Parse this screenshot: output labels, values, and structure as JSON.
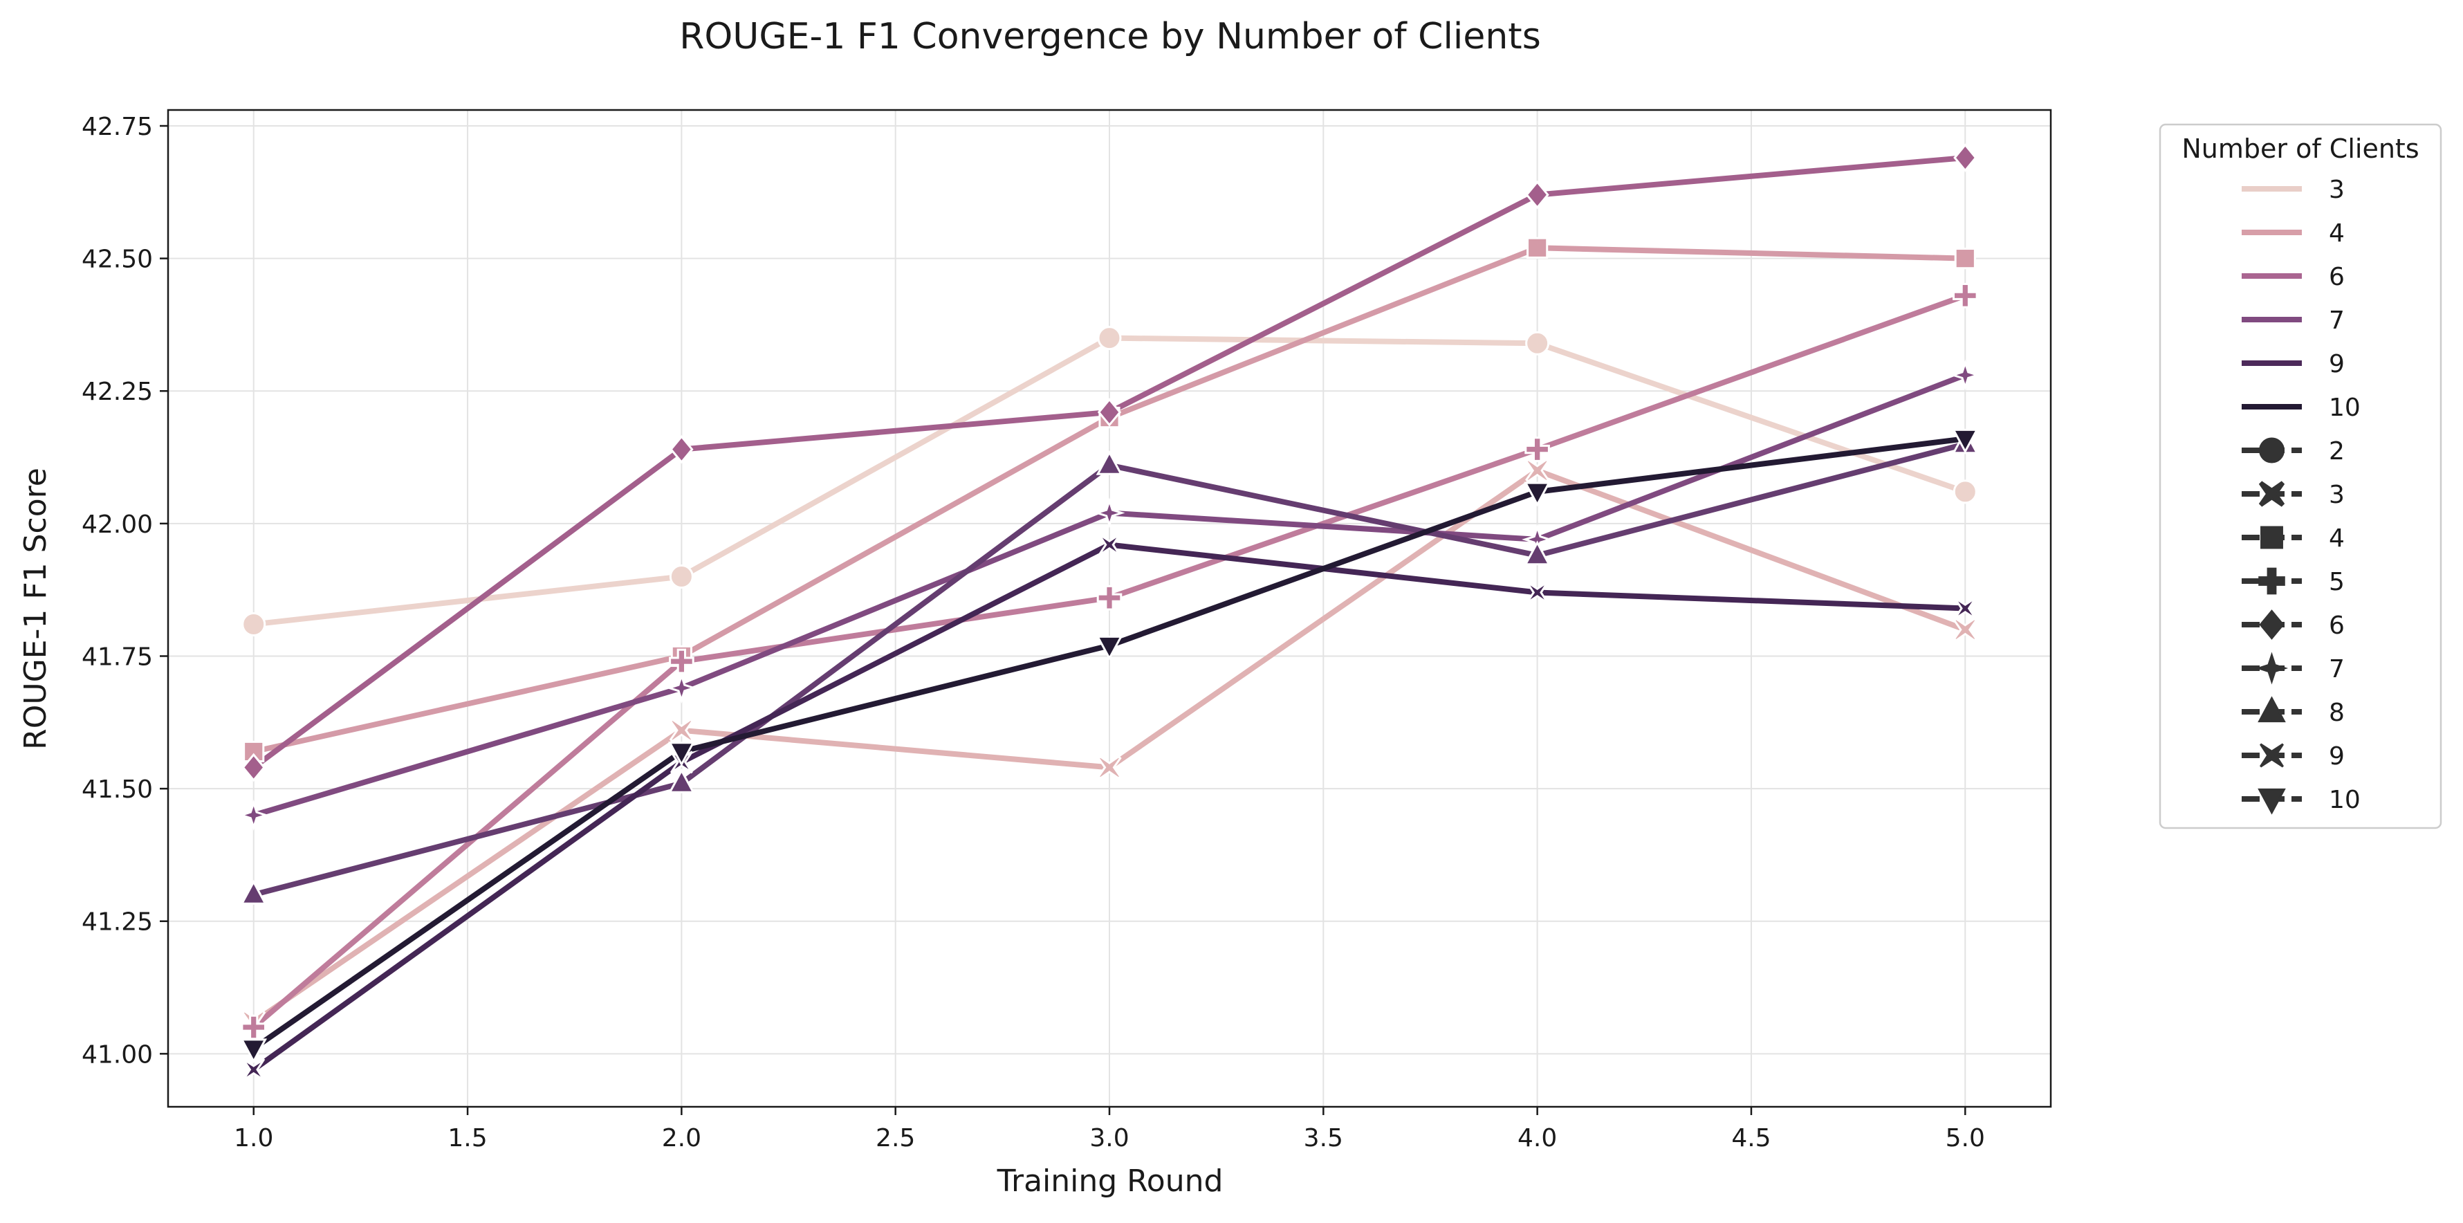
{
  "chart_data": {
    "type": "line",
    "title": "ROUGE-1 F1 Convergence by Number of Clients",
    "xlabel": "Training Round",
    "ylabel": "ROUGE-1 F1 Score",
    "xlim": [
      0.8,
      5.2
    ],
    "ylim": [
      40.9,
      42.78
    ],
    "x_ticks": [
      "1.0",
      "1.5",
      "2.0",
      "2.5",
      "3.0",
      "3.5",
      "4.0",
      "4.5",
      "5.0"
    ],
    "y_ticks": [
      "41.00",
      "41.25",
      "41.50",
      "41.75",
      "42.00",
      "42.25",
      "42.50",
      "42.75"
    ],
    "grid": true,
    "legend": {
      "title": "Number of Clients",
      "placement": "outside-right",
      "hue_entries": [
        {
          "label": "3",
          "color": "#e9cec8"
        },
        {
          "label": "4",
          "color": "#d79ea8"
        },
        {
          "label": "6",
          "color": "#aa6591"
        },
        {
          "label": "7",
          "color": "#804a80"
        },
        {
          "label": "9",
          "color": "#4c2a5a"
        },
        {
          "label": "10",
          "color": "#231a33"
        }
      ],
      "style_entries": [
        {
          "label": "2",
          "marker": "circle"
        },
        {
          "label": "3",
          "marker": "x"
        },
        {
          "label": "4",
          "marker": "square"
        },
        {
          "label": "5",
          "marker": "plus"
        },
        {
          "label": "6",
          "marker": "diamond"
        },
        {
          "label": "7",
          "marker": "star4"
        },
        {
          "label": "8",
          "marker": "triangle-up"
        },
        {
          "label": "9",
          "marker": "bowtie"
        },
        {
          "label": "10",
          "marker": "triangle-down"
        }
      ]
    },
    "x": [
      1,
      2,
      3,
      4,
      5
    ],
    "series": [
      {
        "clients": "2",
        "color": "#ecd3cc",
        "marker": "circle",
        "values": [
          41.81,
          41.9,
          42.35,
          42.34,
          42.06
        ]
      },
      {
        "clients": "3",
        "color": "#e0b2b3",
        "marker": "x",
        "values": [
          41.06,
          41.61,
          41.54,
          42.1,
          41.8
        ]
      },
      {
        "clients": "4",
        "color": "#d49aa7",
        "marker": "square",
        "values": [
          41.57,
          41.75,
          42.2,
          42.52,
          42.5
        ]
      },
      {
        "clients": "5",
        "color": "#bf7c9b",
        "marker": "plus",
        "values": [
          41.05,
          41.74,
          41.86,
          42.14,
          42.43
        ]
      },
      {
        "clients": "6",
        "color": "#a35f8c",
        "marker": "diamond",
        "values": [
          41.54,
          42.14,
          42.21,
          42.62,
          42.69
        ]
      },
      {
        "clients": "7",
        "color": "#804a80",
        "marker": "star4",
        "values": [
          41.45,
          41.69,
          42.02,
          41.97,
          42.28
        ]
      },
      {
        "clients": "8",
        "color": "#653d70",
        "marker": "triangle-up",
        "values": [
          41.3,
          41.51,
          42.11,
          41.94,
          42.15
        ]
      },
      {
        "clients": "9",
        "color": "#442655",
        "marker": "bowtie",
        "values": [
          40.97,
          41.55,
          41.96,
          41.87,
          41.84
        ]
      },
      {
        "clients": "10",
        "color": "#231a33",
        "marker": "triangle-down",
        "values": [
          41.01,
          41.57,
          41.77,
          42.06,
          42.16
        ]
      }
    ]
  }
}
